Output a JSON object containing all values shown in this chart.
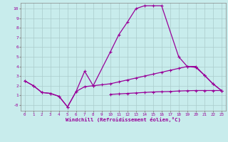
{
  "xlabel": "Windchill (Refroidissement éolien,°C)",
  "bg_color": "#c8ecec",
  "line_color": "#990099",
  "grid_color": "#aacccc",
  "xlim": [
    -0.5,
    23.5
  ],
  "ylim": [
    -0.6,
    10.6
  ],
  "xticks": [
    0,
    1,
    2,
    3,
    4,
    5,
    6,
    7,
    8,
    9,
    10,
    11,
    12,
    13,
    14,
    15,
    16,
    17,
    18,
    19,
    20,
    21,
    22,
    23
  ],
  "yticks": [
    0,
    1,
    2,
    3,
    4,
    5,
    6,
    7,
    8,
    9,
    10
  ],
  "ytick_labels": [
    "-0",
    "1",
    "2",
    "3",
    "4",
    "5",
    "6",
    "7",
    "8",
    "9",
    "10"
  ],
  "sa_x": [
    0,
    1,
    2,
    3,
    4,
    5,
    6,
    7,
    8,
    10,
    11,
    12,
    13,
    14,
    15,
    16,
    18,
    19,
    20,
    21,
    22,
    23
  ],
  "sa_y": [
    2.5,
    2.0,
    1.3,
    1.2,
    0.9,
    -0.2,
    1.4,
    3.5,
    2.0,
    5.5,
    7.3,
    8.6,
    10.0,
    10.3,
    10.3,
    10.3,
    5.0,
    4.0,
    4.0,
    3.1,
    2.2,
    1.5
  ],
  "sb_x": [
    0,
    1,
    2,
    3,
    4,
    5,
    6,
    7,
    8,
    9,
    10,
    11,
    12,
    13,
    14,
    15,
    16,
    17,
    18,
    19,
    20,
    21,
    22,
    23
  ],
  "sb_y": [
    2.5,
    2.0,
    1.3,
    1.2,
    0.9,
    -0.2,
    1.4,
    1.9,
    2.0,
    2.1,
    2.2,
    2.4,
    2.6,
    2.8,
    3.0,
    3.2,
    3.4,
    3.6,
    3.8,
    4.0,
    3.9,
    3.1,
    2.2,
    1.5
  ],
  "sc_x": [
    10,
    11,
    12,
    13,
    14,
    15,
    16,
    17,
    18,
    19,
    20,
    21,
    22,
    23
  ],
  "sc_y": [
    1.1,
    1.15,
    1.2,
    1.25,
    1.3,
    1.35,
    1.38,
    1.4,
    1.45,
    1.48,
    1.5,
    1.5,
    1.5,
    1.5
  ]
}
